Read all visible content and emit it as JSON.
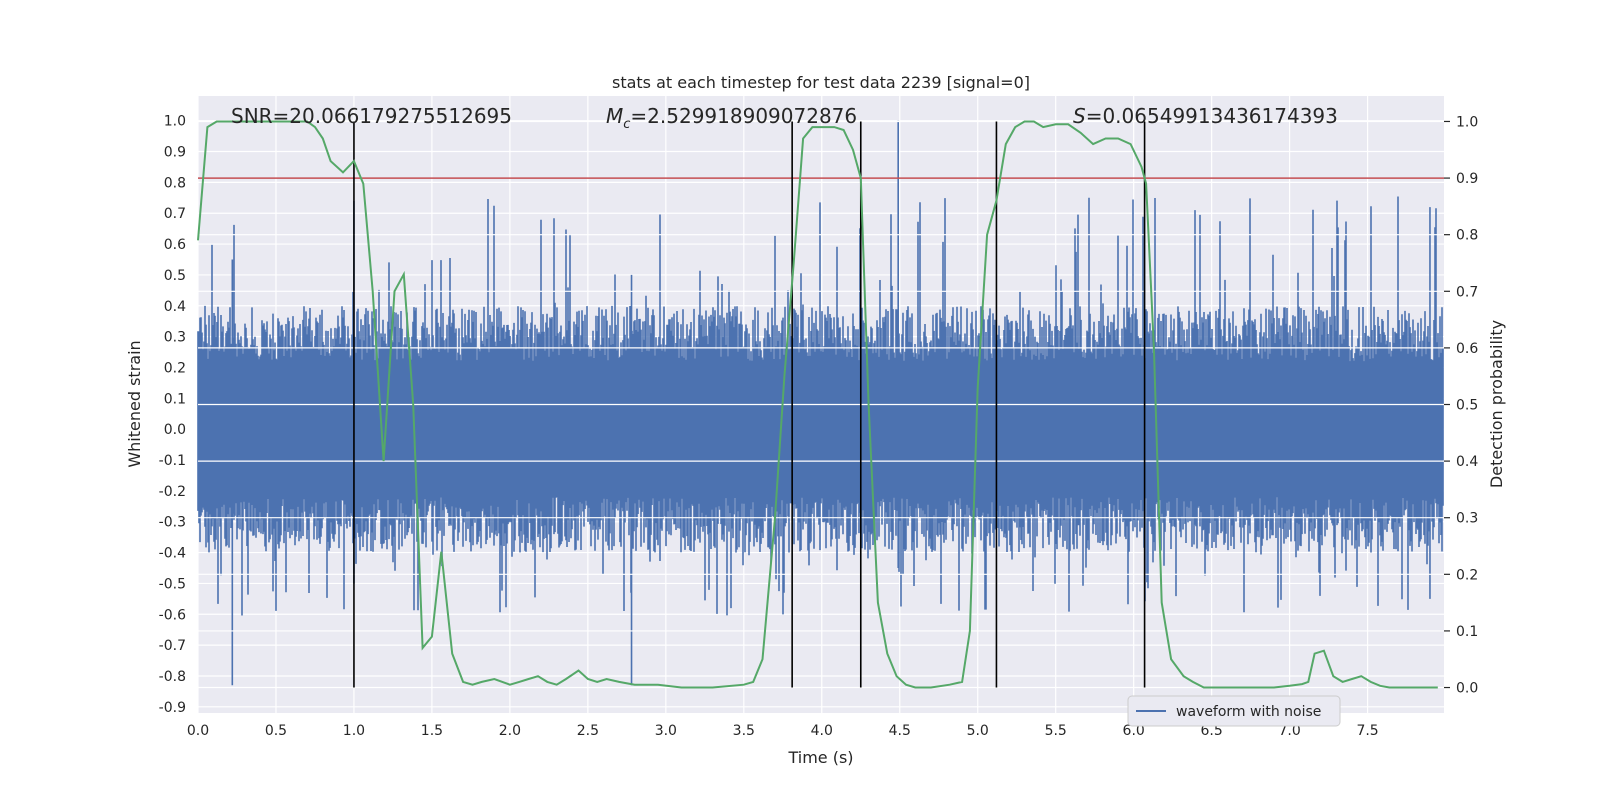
{
  "chart_data": {
    "type": "line",
    "title": "stats at each timestep for test data 2239 [signal=0]",
    "xlabel": "Time (s)",
    "ylabel_left": "Whitened strain",
    "ylabel_right": "Detection probability",
    "xlim": [
      0.0,
      7.99
    ],
    "ylim_left": [
      -0.92,
      1.08
    ],
    "ylim_right": [
      -0.045,
      1.045
    ],
    "x_ticks": [
      "0.0",
      "0.5",
      "1.0",
      "1.5",
      "2.0",
      "2.5",
      "3.0",
      "3.5",
      "4.0",
      "4.5",
      "5.0",
      "5.5",
      "6.0",
      "6.5",
      "7.0",
      "7.5"
    ],
    "y_left_ticks": [
      "1.0",
      "0.9",
      "0.8",
      "0.7",
      "0.6",
      "0.5",
      "0.4",
      "0.3",
      "0.2",
      "0.1",
      "0.0",
      "-0.1",
      "-0.2",
      "-0.3",
      "-0.4",
      "-0.5",
      "-0.6",
      "-0.7",
      "-0.8",
      "-0.9"
    ],
    "y_right_ticks": [
      "1.0",
      "0.9",
      "0.8",
      "0.7",
      "0.6",
      "0.5",
      "0.4",
      "0.3",
      "0.2",
      "0.1",
      "0.0"
    ],
    "grid": true,
    "annotations": {
      "snr": "SNR=20.066179275512695",
      "mc_symbol": "M",
      "mc_sub": "c",
      "mc_value": "=2.529918909072876",
      "s_symbol": "S",
      "s_value": "=0.06549913436174393"
    },
    "threshold": {
      "value": 0.9,
      "color": "#c44e52"
    },
    "vertical_markers": [
      1.0,
      3.81,
      4.25,
      5.12,
      6.07
    ],
    "waveform": {
      "name": "waveform with noise",
      "color": "#4c72b0",
      "typical_envelope": 0.4,
      "max": 1.0,
      "min": -0.83
    },
    "probability": {
      "color": "#55a868",
      "x": [
        0.0,
        0.06,
        0.12,
        0.2,
        0.3,
        0.4,
        0.5,
        0.6,
        0.7,
        0.75,
        0.8,
        0.85,
        0.93,
        1.0,
        1.06,
        1.12,
        1.19,
        1.26,
        1.32,
        1.38,
        1.44,
        1.5,
        1.56,
        1.63,
        1.7,
        1.76,
        1.82,
        1.9,
        2.0,
        2.06,
        2.12,
        2.18,
        2.24,
        2.3,
        2.36,
        2.44,
        2.5,
        2.56,
        2.62,
        2.7,
        2.8,
        2.95,
        3.1,
        3.3,
        3.5,
        3.56,
        3.62,
        3.7,
        3.76,
        3.82,
        3.88,
        3.94,
        4.0,
        4.08,
        4.14,
        4.2,
        4.25,
        4.3,
        4.36,
        4.42,
        4.48,
        4.54,
        4.6,
        4.7,
        4.82,
        4.9,
        4.95,
        5.0,
        5.06,
        5.12,
        5.18,
        5.24,
        5.3,
        5.36,
        5.42,
        5.5,
        5.58,
        5.66,
        5.74,
        5.82,
        5.9,
        5.98,
        6.05,
        6.08,
        6.13,
        6.18,
        6.24,
        6.32,
        6.38,
        6.45,
        6.6,
        6.9,
        7.0,
        7.08,
        7.12,
        7.16,
        7.22,
        7.28,
        7.34,
        7.4,
        7.46,
        7.52,
        7.58,
        7.64,
        7.72,
        7.85,
        7.95
      ],
      "y": [
        0.79,
        0.99,
        1.0,
        1.0,
        1.0,
        1.0,
        1.0,
        1.0,
        1.0,
        0.99,
        0.97,
        0.93,
        0.91,
        0.93,
        0.89,
        0.7,
        0.4,
        0.7,
        0.73,
        0.5,
        0.07,
        0.09,
        0.24,
        0.06,
        0.01,
        0.005,
        0.01,
        0.015,
        0.005,
        0.01,
        0.015,
        0.02,
        0.01,
        0.005,
        0.015,
        0.03,
        0.015,
        0.01,
        0.015,
        0.01,
        0.005,
        0.005,
        0.0,
        0.0,
        0.005,
        0.01,
        0.05,
        0.3,
        0.55,
        0.75,
        0.97,
        0.99,
        0.99,
        0.99,
        0.985,
        0.95,
        0.9,
        0.5,
        0.15,
        0.06,
        0.02,
        0.005,
        0.0,
        0.0,
        0.005,
        0.01,
        0.1,
        0.53,
        0.8,
        0.86,
        0.96,
        0.99,
        1.0,
        1.0,
        0.99,
        0.995,
        0.995,
        0.98,
        0.96,
        0.97,
        0.97,
        0.96,
        0.92,
        0.89,
        0.6,
        0.15,
        0.05,
        0.02,
        0.01,
        0.0,
        0.0,
        0.0,
        0.003,
        0.006,
        0.01,
        0.06,
        0.065,
        0.02,
        0.01,
        0.015,
        0.02,
        0.01,
        0.003,
        0.0,
        0.0,
        0.0,
        0.0
      ]
    },
    "legend": {
      "placement": "lower-right",
      "entries": [
        "waveform with noise"
      ]
    }
  }
}
